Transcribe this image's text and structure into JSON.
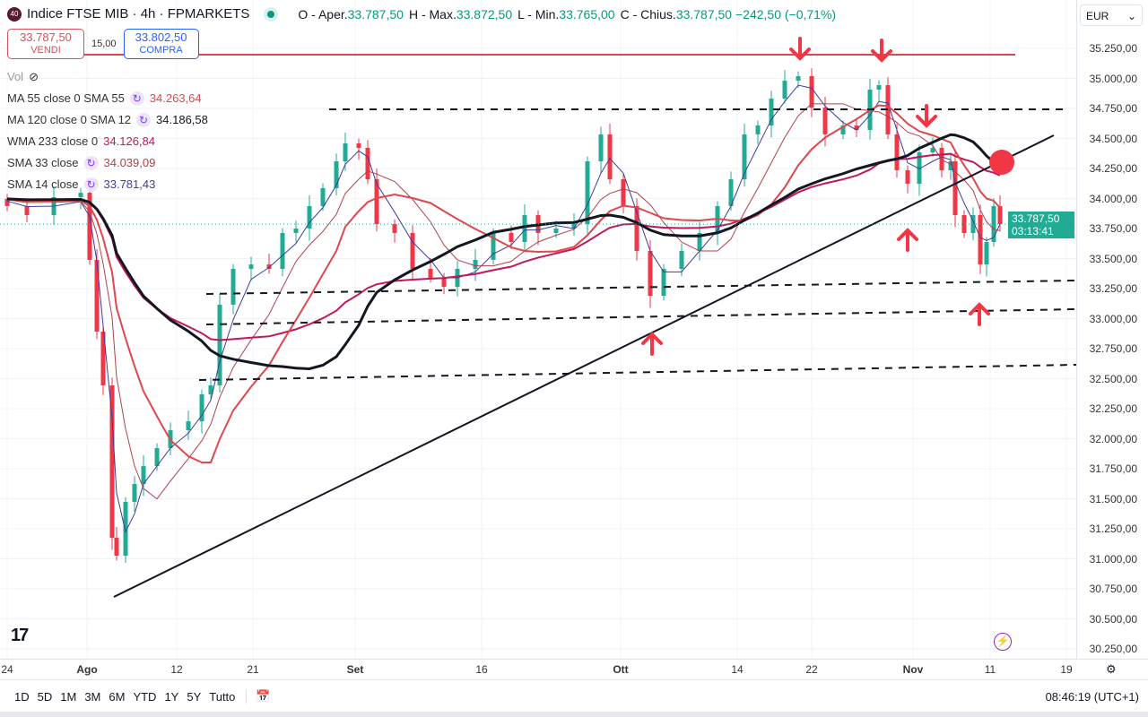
{
  "header": {
    "badge": "40",
    "title": "Indice FTSE MIB · 4h · FPMARKETS",
    "ohlc": [
      {
        "label": "O - Aper.",
        "value": "33.787,50"
      },
      {
        "label": "H - Max.",
        "value": "33.872,50"
      },
      {
        "label": "L - Min.",
        "value": "33.765,00"
      },
      {
        "label": "C - Chius.",
        "value": "33.787,50 −242,50 (−0,71%)"
      }
    ]
  },
  "trade": {
    "sell_price": "33.787,50",
    "sell_label": "VENDI",
    "spread": "15,00",
    "buy_price": "33.802,50",
    "buy_label": "COMPRA"
  },
  "legend": {
    "vol": "Vol",
    "items": [
      {
        "name": "MA 55 close 0 SMA 55",
        "value": "34.263,64",
        "color": "#e0474c"
      },
      {
        "name": "MA 120 close 0 SMA 12",
        "value": "34.186,58",
        "color": "#131722"
      },
      {
        "name": "WMA 233 close 0",
        "value": "34.126,84",
        "color": "#c2185b"
      },
      {
        "name": "SMA 33 close",
        "value": "34.039,09",
        "color": "#b2404a"
      },
      {
        "name": "SMA 14 close",
        "value": "33.781,43",
        "color": "#3d3d9e"
      }
    ]
  },
  "currency": "EUR",
  "current": {
    "price": "33.787,50",
    "countdown": "03:13:41"
  },
  "bottom": {
    "ranges": [
      "1D",
      "5D",
      "1M",
      "3M",
      "6M",
      "YTD",
      "1Y",
      "5Y",
      "Tutto"
    ],
    "clock": "08:46:19 (UTC+1)"
  },
  "colors": {
    "up": "#22ab94",
    "down": "#f23645",
    "annot": "#f23645"
  },
  "chart_data": {
    "type": "candlestick",
    "title": "Indice FTSE MIB · 4h · FPMARKETS",
    "ylim": [
      30250,
      35250
    ],
    "yticks": [
      "35.250,00",
      "35.000,00",
      "34.750,00",
      "34.500,00",
      "34.250,00",
      "34.000,00",
      "33.750,00",
      "33.500,00",
      "33.250,00",
      "33.000,00",
      "32.750,00",
      "32.500,00",
      "32.250,00",
      "32.000,00",
      "31.750,00",
      "31.500,00",
      "31.250,00",
      "31.000,00",
      "30.750,00",
      "30.500,00",
      "30.250,00"
    ],
    "xticks": [
      {
        "t": 0,
        "label": "24"
      },
      {
        "t": 17.8,
        "label": "Ago"
      },
      {
        "t": 37.8,
        "label": "12"
      },
      {
        "t": 54.8,
        "label": "21"
      },
      {
        "t": 77.6,
        "label": "Set"
      },
      {
        "t": 105.8,
        "label": "16"
      },
      {
        "t": 136.8,
        "label": "Ott"
      },
      {
        "t": 162.8,
        "label": "14"
      },
      {
        "t": 179.4,
        "label": "22"
      },
      {
        "t": 202,
        "label": "Nov"
      },
      {
        "t": 219.2,
        "label": "11"
      },
      {
        "t": 236.2,
        "label": "19"
      }
    ],
    "closes": [
      [
        0,
        33937
      ],
      [
        4.4,
        33862
      ],
      [
        10.4,
        34011
      ],
      [
        16.4,
        34048
      ],
      [
        18.4,
        33489
      ],
      [
        20,
        32892
      ],
      [
        21.4,
        32444
      ],
      [
        23.4,
        31175
      ],
      [
        24.4,
        31026
      ],
      [
        26.4,
        31474
      ],
      [
        28.4,
        31623
      ],
      [
        30.4,
        31772
      ],
      [
        33.4,
        31922
      ],
      [
        36.4,
        32071
      ],
      [
        40.4,
        32145
      ],
      [
        43.4,
        32369
      ],
      [
        45.4,
        32444
      ],
      [
        47.4,
        33116
      ],
      [
        50.4,
        33414
      ],
      [
        54.4,
        33451
      ],
      [
        58.4,
        33414
      ],
      [
        61.4,
        33713
      ],
      [
        64.4,
        33750
      ],
      [
        67.4,
        33937
      ],
      [
        70.4,
        34086
      ],
      [
        73.4,
        34310
      ],
      [
        75.4,
        34459
      ],
      [
        78.4,
        34422
      ],
      [
        80.4,
        34160
      ],
      [
        82.4,
        33787
      ],
      [
        86.4,
        33713
      ],
      [
        90.4,
        33414
      ],
      [
        94.4,
        33340
      ],
      [
        97.4,
        33265
      ],
      [
        100.4,
        33414
      ],
      [
        104.4,
        33489
      ],
      [
        108.4,
        33713
      ],
      [
        112.4,
        33638
      ],
      [
        115.4,
        33862
      ],
      [
        118.4,
        33713
      ],
      [
        122.4,
        33750
      ],
      [
        126.4,
        33787
      ],
      [
        129.4,
        34310
      ],
      [
        132.4,
        34534
      ],
      [
        134.4,
        34160
      ],
      [
        137.4,
        33937
      ],
      [
        140.4,
        33563
      ],
      [
        143.4,
        33190
      ],
      [
        146.4,
        33414
      ],
      [
        150.4,
        33563
      ],
      [
        154.4,
        33713
      ],
      [
        158.4,
        33937
      ],
      [
        161.4,
        34160
      ],
      [
        164.4,
        34534
      ],
      [
        167.4,
        34608
      ],
      [
        170.4,
        34832
      ],
      [
        173.4,
        34981
      ],
      [
        176.4,
        35019
      ],
      [
        179.4,
        34757
      ],
      [
        182.4,
        34534
      ],
      [
        186.4,
        34608
      ],
      [
        189.4,
        34571
      ],
      [
        192.4,
        34907
      ],
      [
        194.4,
        34944
      ],
      [
        196.4,
        34534
      ],
      [
        198.4,
        34235
      ],
      [
        200.8,
        34123
      ],
      [
        203.4,
        34384
      ],
      [
        206.4,
        34422
      ],
      [
        208.4,
        34235
      ],
      [
        210.4,
        34310
      ],
      [
        211.4,
        33862
      ],
      [
        213.4,
        33713
      ],
      [
        215.4,
        33862
      ],
      [
        217,
        33451
      ],
      [
        218.4,
        33638
      ],
      [
        220,
        33937
      ],
      [
        221.4,
        33787
      ]
    ],
    "levels": [
      {
        "price": 35000,
        "style": "solid-red"
      },
      {
        "price": 34750,
        "style": "dashed"
      }
    ],
    "current_price": 33787.5
  }
}
